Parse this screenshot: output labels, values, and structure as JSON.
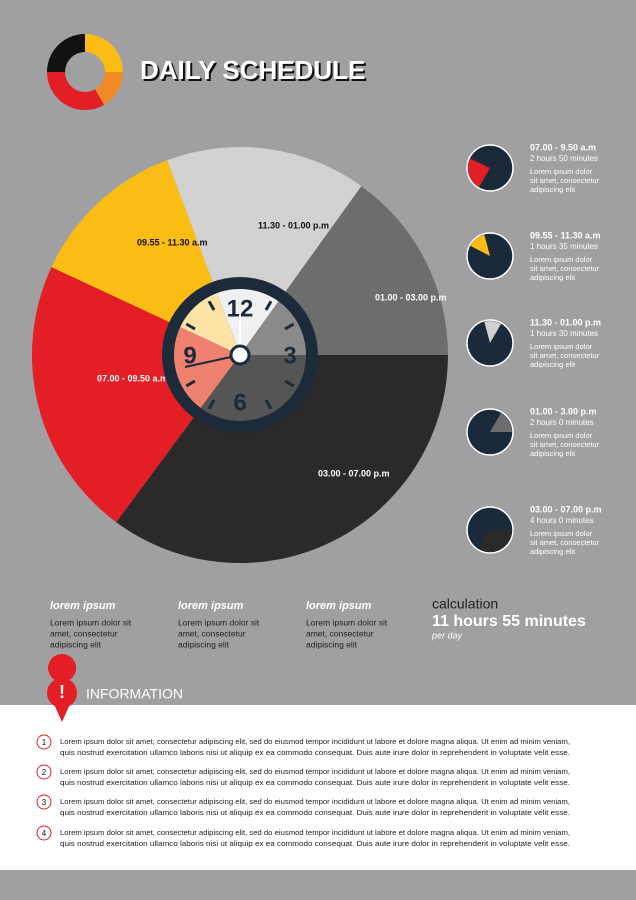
{
  "header": {
    "title": "DAILY SCHEDULE"
  },
  "pie_labels": [
    "07.00 - 09.50 a.m",
    "09.55 - 11.30 a.m",
    "11.30 - 01.00 p.m",
    "01.00 - 03.00 p.m",
    "03.00 - 07.00 p.m"
  ],
  "clock_numbers": [
    "12",
    "3",
    "6",
    "9"
  ],
  "schedule": [
    {
      "time": "07.00 - 9.50 a.m",
      "duration": "2 hours 50 minutes",
      "text": [
        "Lorem ipsum dolor",
        "sit amet, consectetur",
        "adipiscing elit"
      ]
    },
    {
      "time": "09.55 - 11.30 a.m",
      "duration": "1 hours 35 minutes",
      "text": [
        "Lorem ipsum dolor",
        "sit amet, consectetur",
        "adipiscing elit"
      ]
    },
    {
      "time": "11.30 - 01.00 p.m",
      "duration": "1 hours 30 minutes",
      "text": [
        "Lorem ipsum dolor",
        "sit amet, consectetur",
        "adipiscing elit"
      ]
    },
    {
      "time": "01.00 - 3.00 p.m",
      "duration": "2 hours 0 minutes",
      "text": [
        "Lorem ipsum dolor",
        "sit amet, consectetur",
        "adipiscing elit"
      ]
    },
    {
      "time": "03.00 - 07.00 p.m",
      "duration": "4 hours 0 minutes",
      "text": [
        "Lorem ipsum dolor",
        "sit amet, consectetur",
        "adipiscing elit"
      ]
    }
  ],
  "notes": [
    {
      "heading": "lorem ipsum",
      "text": [
        "Lorem ipsum dolor sit",
        "amet, consectetur",
        "adipiscing elit"
      ]
    },
    {
      "heading": "lorem ipsum",
      "text": [
        "Lorem ipsum dolor sit",
        "amet, consectetur",
        "adipiscing elit"
      ]
    },
    {
      "heading": "lorem ipsum",
      "text": [
        "Lorem ipsum dolor sit",
        "amet, consectetur",
        "adipiscing elit"
      ]
    }
  ],
  "calculation": {
    "label": "calculation",
    "value": "11 hours 55 minutes",
    "unit": "per day"
  },
  "information": {
    "heading": "INFORMATION",
    "items": [
      {
        "number": 1,
        "text": [
          "Lorem ipsum dolor sit amet, consectetur adipiscing elit, sed do eiusmod tempor incididunt ut labore et dolore magna aliqua. Ut enim ad minim veniam,",
          "quis nostrud exercitation ullamco laboris nisi ut aliquip ex ea commodo consequat. Duis aute irure dolor in reprehenderit in voluptate velit esse."
        ]
      },
      {
        "number": 2,
        "text": [
          "Lorem ipsum dolor sit amet, consectetur adipiscing elit, sed do eiusmod tempor incididunt ut labore et dolore magna aliqua. Ut enim ad minim veniam,",
          "quis nostrud exercitation ullamco laboris nisi ut aliquip ex ea commodo consequat. Duis aute irure dolor in reprehenderit in voluptate velit esse."
        ]
      },
      {
        "number": 3,
        "text": [
          "Lorem ipsum dolor sit amet, consectetur adipiscing elit, sed do eiusmod tempor incididunt ut labore et dolore magna aliqua. Ut enim ad minim veniam,",
          "quis nostrud exercitation ullamco laboris nisi ut aliquip ex ea commodo consequat. Duis aute irure dolor in reprehenderit in voluptate velit esse."
        ]
      },
      {
        "number": 4,
        "text": [
          "Lorem ipsum dolor sit amet, consectetur adipiscing elit, sed do eiusmod tempor incididunt ut labore et dolore magna aliqua. Ut enim ad minim veniam,",
          "quis nostrud exercitation ullamco laboris nisi ut aliquip ex ea commodo consequat. Duis aute irure dolor in reprehenderit in voluptate velit esse."
        ]
      }
    ]
  }
}
